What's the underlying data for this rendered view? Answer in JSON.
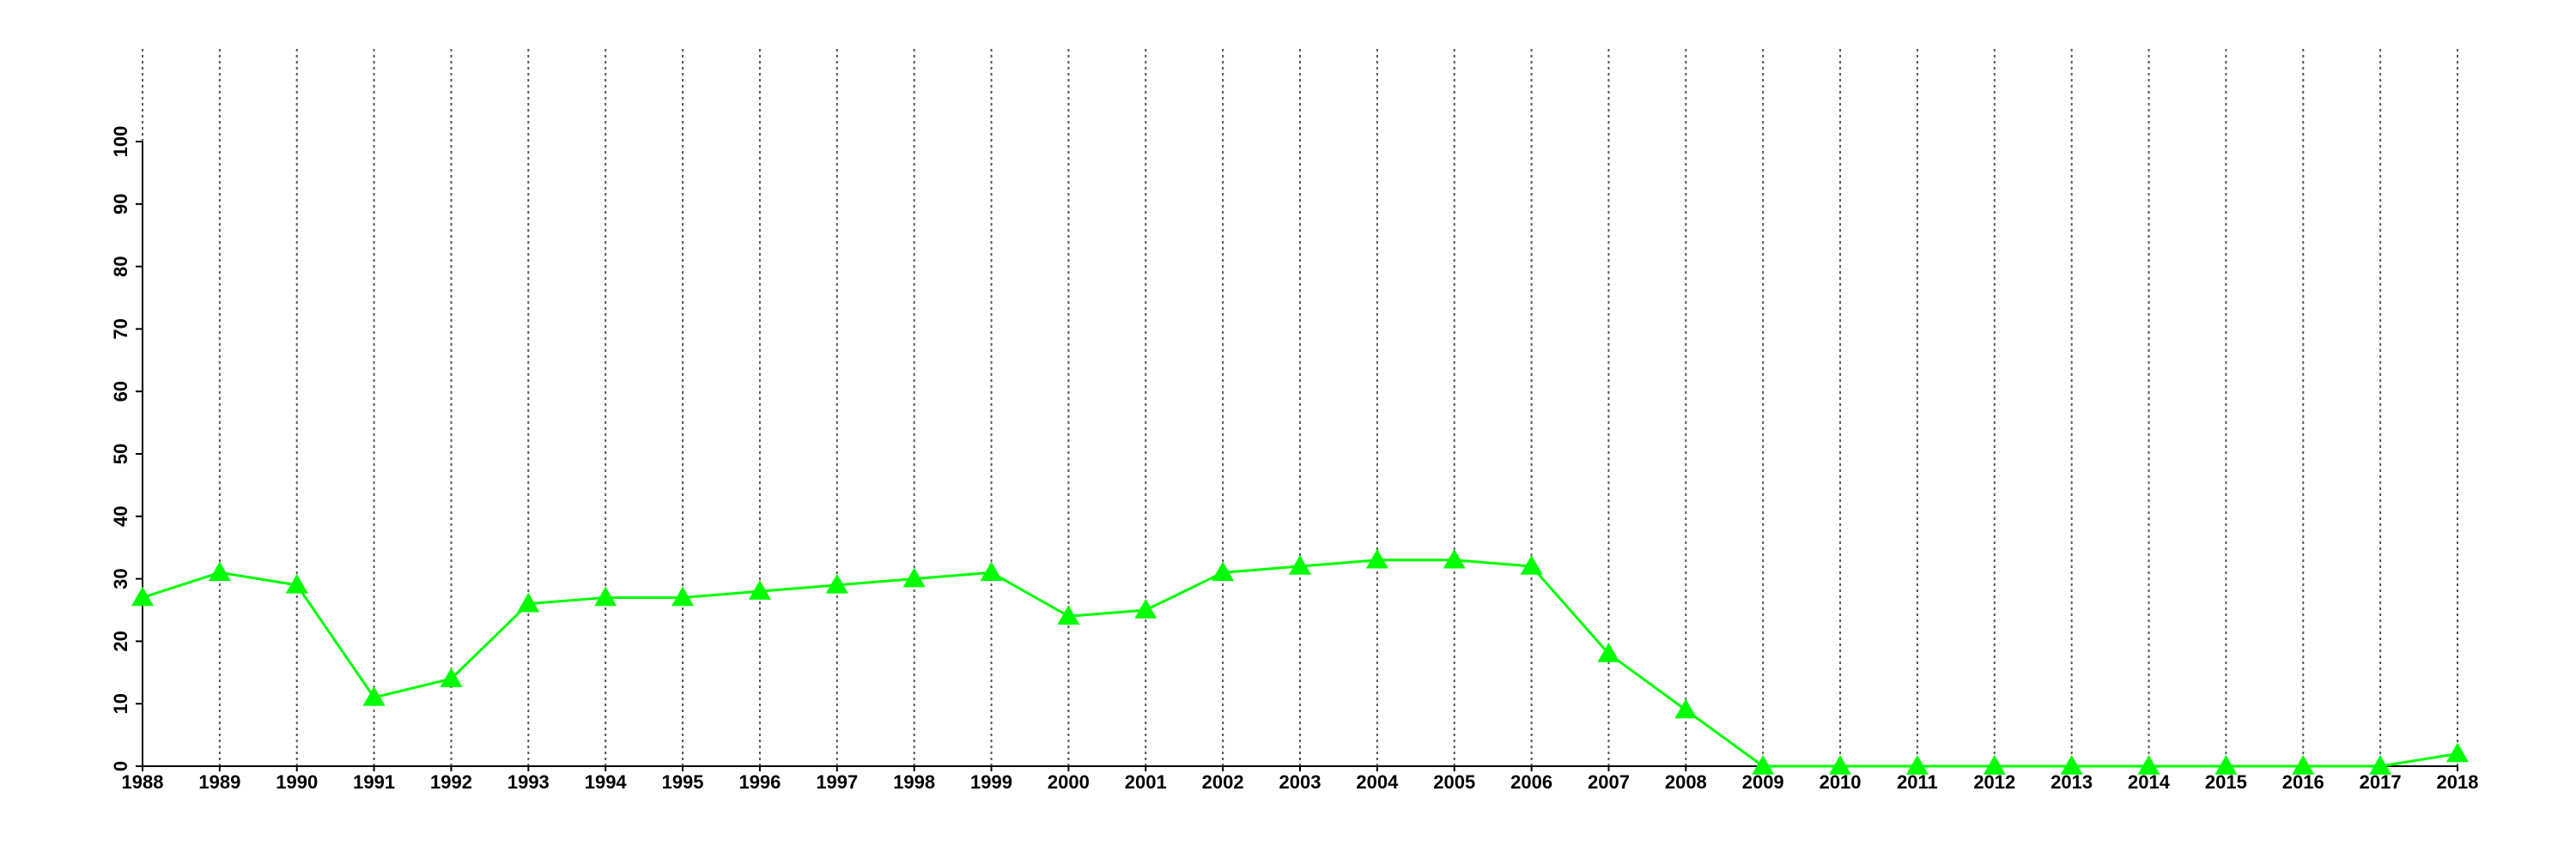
{
  "chart_data": {
    "type": "line",
    "x": [
      1988,
      1989,
      1990,
      1991,
      1992,
      1993,
      1994,
      1995,
      1996,
      1997,
      1998,
      1999,
      2000,
      2001,
      2002,
      2003,
      2004,
      2005,
      2006,
      2007,
      2008,
      2009,
      2010,
      2011,
      2012,
      2013,
      2014,
      2015,
      2016,
      2017,
      2018
    ],
    "values": [
      27,
      31,
      29,
      11,
      14,
      26,
      27,
      27,
      28,
      29,
      30,
      31,
      24,
      25,
      31,
      32,
      33,
      33,
      32,
      18,
      9,
      0,
      0,
      0,
      0,
      0,
      0,
      0,
      0,
      0,
      2
    ],
    "color": "#00ff00",
    "xlim": [
      1988,
      2018
    ],
    "xticks": [
      1988,
      1989,
      1990,
      1991,
      1992,
      1993,
      1994,
      1995,
      1996,
      1997,
      1998,
      1999,
      2000,
      2001,
      2002,
      2003,
      2004,
      2005,
      2006,
      2007,
      2008,
      2009,
      2010,
      2011,
      2012,
      2013,
      2014,
      2015,
      2016,
      2017,
      2018
    ],
    "ylim": [
      0,
      100
    ],
    "yticks": [
      0,
      10,
      20,
      30,
      40,
      50,
      60,
      70,
      80,
      90,
      100
    ],
    "grid": true
  }
}
